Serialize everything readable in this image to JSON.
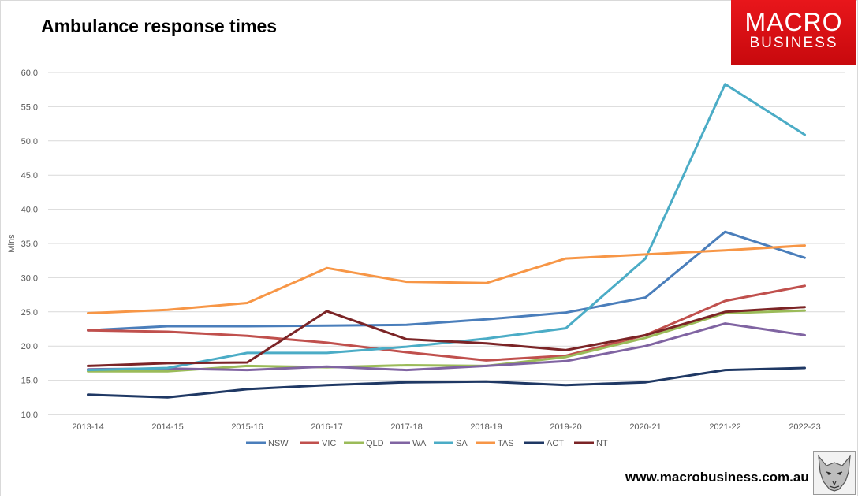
{
  "title": "Ambulance response times",
  "logo": {
    "line1": "MACRO",
    "line2": "BUSINESS"
  },
  "footer_url": "www.macrobusiness.com.au",
  "colors": {
    "NSW": "#4a7ebb",
    "VIC": "#c0504d",
    "QLD": "#9bbb59",
    "WA": "#8064a2",
    "SA": "#4bacc6",
    "TAS": "#f79646",
    "ACT": "#1f3864",
    "NT": "#7b2426"
  },
  "chart_data": {
    "type": "line",
    "title": "Ambulance response times",
    "xlabel": "",
    "ylabel": "Mins",
    "ylim": [
      10,
      60
    ],
    "yticks": [
      "10.0",
      "15.0",
      "20.0",
      "25.0",
      "30.0",
      "35.0",
      "40.0",
      "45.0",
      "50.0",
      "55.0",
      "60.0"
    ],
    "categories": [
      "2013-14",
      "2014-15",
      "2015-16",
      "2016-17",
      "2017-18",
      "2018-19",
      "2019-20",
      "2020-21",
      "2021-22",
      "2022-23"
    ],
    "legend_position": "bottom",
    "series": [
      {
        "name": "NSW",
        "values": [
          22.3,
          22.9,
          22.9,
          23.0,
          23.1,
          23.9,
          24.9,
          27.1,
          36.7,
          32.9
        ]
      },
      {
        "name": "VIC",
        "values": [
          22.3,
          22.1,
          21.5,
          20.5,
          19.1,
          17.9,
          18.6,
          21.6,
          26.6,
          28.8
        ]
      },
      {
        "name": "QLD",
        "values": [
          16.3,
          16.3,
          17.1,
          16.9,
          17.2,
          17.1,
          18.4,
          21.2,
          24.8,
          25.2
        ]
      },
      {
        "name": "WA",
        "values": [
          16.6,
          16.7,
          16.5,
          17.0,
          16.5,
          17.1,
          17.8,
          20.0,
          23.3,
          21.6
        ]
      },
      {
        "name": "SA",
        "values": [
          16.5,
          16.8,
          19.0,
          19.0,
          19.9,
          21.1,
          22.6,
          32.8,
          58.3,
          50.9
        ]
      },
      {
        "name": "TAS",
        "values": [
          24.8,
          25.3,
          26.3,
          31.4,
          29.4,
          29.2,
          32.8,
          33.4,
          34.0,
          34.7
        ]
      },
      {
        "name": "ACT",
        "values": [
          12.9,
          12.5,
          13.7,
          14.3,
          14.7,
          14.8,
          14.3,
          14.7,
          16.5,
          16.8
        ]
      },
      {
        "name": "NT",
        "values": [
          17.1,
          17.5,
          17.6,
          25.1,
          21.0,
          20.4,
          19.4,
          21.6,
          25.0,
          25.7
        ]
      }
    ]
  }
}
